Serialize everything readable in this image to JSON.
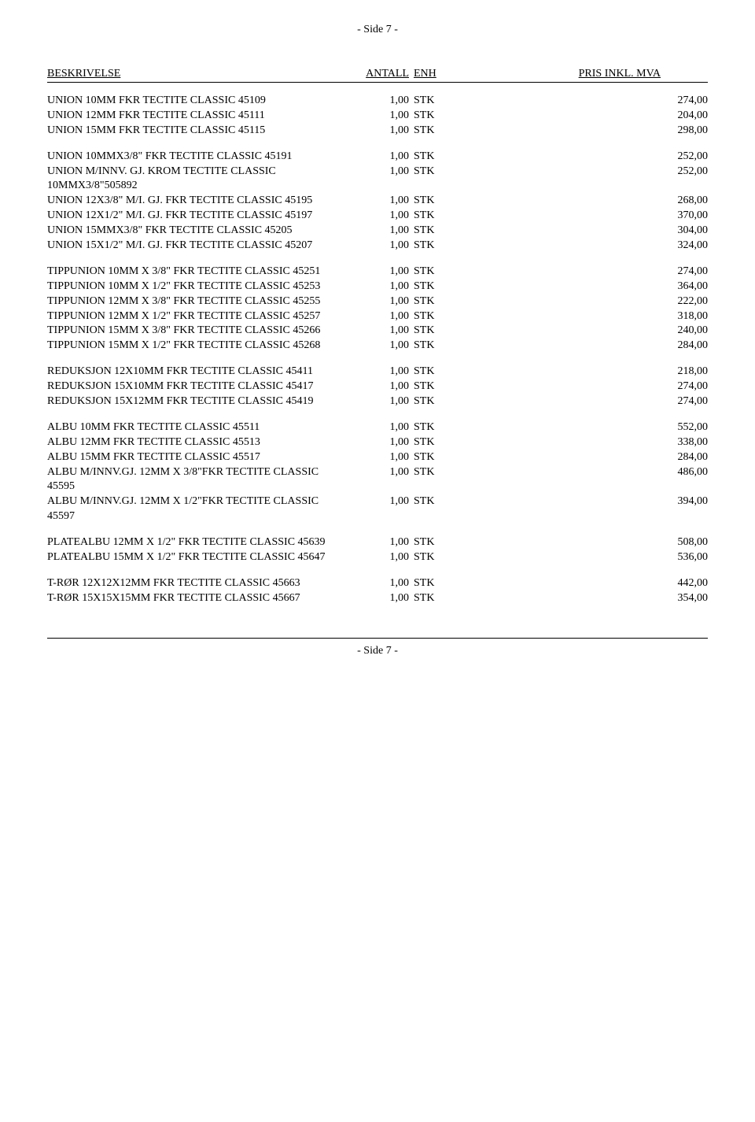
{
  "pageHeader": "- Side 7 -",
  "pageFooter": "- Side 7 -",
  "columns": {
    "desc": "BESKRIVELSE",
    "qty": "ANTALL",
    "unit": "ENH",
    "price": "PRIS INKL. MVA"
  },
  "groups": [
    [
      {
        "desc": "UNION 10MM FKR TECTITE CLASSIC 45109",
        "qty": "1,00",
        "unit": "STK",
        "price": "274,00"
      },
      {
        "desc": "UNION 12MM FKR TECTITE CLASSIC 45111",
        "qty": "1,00",
        "unit": "STK",
        "price": "204,00"
      },
      {
        "desc": "UNION 15MM FKR TECTITE CLASSIC 45115",
        "qty": "1,00",
        "unit": "STK",
        "price": "298,00"
      }
    ],
    [
      {
        "desc": "UNION 10MMX3/8\" FKR TECTITE CLASSIC 45191",
        "qty": "1,00",
        "unit": "STK",
        "price": "252,00"
      },
      {
        "desc": "UNION M/INNV. GJ. KROM TECTITE CLASSIC 10MMX3/8\"505892",
        "qty": "1,00",
        "unit": "STK",
        "price": "252,00"
      },
      {
        "desc": "UNION 12X3/8\" M/I. GJ. FKR TECTITE CLASSIC 45195",
        "qty": "1,00",
        "unit": "STK",
        "price": "268,00"
      },
      {
        "desc": "UNION 12X1/2\" M/I. GJ. FKR TECTITE CLASSIC 45197",
        "qty": "1,00",
        "unit": "STK",
        "price": "370,00"
      },
      {
        "desc": "UNION 15MMX3/8\" FKR TECTITE CLASSIC 45205",
        "qty": "1,00",
        "unit": "STK",
        "price": "304,00"
      },
      {
        "desc": "UNION 15X1/2\" M/I. GJ. FKR TECTITE CLASSIC 45207",
        "qty": "1,00",
        "unit": "STK",
        "price": "324,00"
      }
    ],
    [
      {
        "desc": "TIPPUNION 10MM X 3/8\" FKR TECTITE CLASSIC 45251",
        "qty": "1,00",
        "unit": "STK",
        "price": "274,00"
      },
      {
        "desc": "TIPPUNION 10MM X 1/2\" FKR TECTITE CLASSIC 45253",
        "qty": "1,00",
        "unit": "STK",
        "price": "364,00"
      },
      {
        "desc": "TIPPUNION 12MM X 3/8\" FKR TECTITE CLASSIC 45255",
        "qty": "1,00",
        "unit": "STK",
        "price": "222,00"
      },
      {
        "desc": "TIPPUNION 12MM X 1/2\" FKR TECTITE CLASSIC 45257",
        "qty": "1,00",
        "unit": "STK",
        "price": "318,00"
      },
      {
        "desc": "TIPPUNION 15MM X 3/8\" FKR TECTITE CLASSIC 45266",
        "qty": "1,00",
        "unit": "STK",
        "price": "240,00"
      },
      {
        "desc": "TIPPUNION 15MM X 1/2\" FKR TECTITE CLASSIC 45268",
        "qty": "1,00",
        "unit": "STK",
        "price": "284,00"
      }
    ],
    [
      {
        "desc": "REDUKSJON 12X10MM FKR TECTITE CLASSIC 45411",
        "qty": "1,00",
        "unit": "STK",
        "price": "218,00"
      },
      {
        "desc": "REDUKSJON 15X10MM FKR TECTITE CLASSIC 45417",
        "qty": "1,00",
        "unit": "STK",
        "price": "274,00"
      },
      {
        "desc": "REDUKSJON 15X12MM FKR TECTITE CLASSIC 45419",
        "qty": "1,00",
        "unit": "STK",
        "price": "274,00"
      }
    ],
    [
      {
        "desc": "ALBU 10MM FKR TECTITE CLASSIC 45511",
        "qty": "1,00",
        "unit": "STK",
        "price": "552,00"
      },
      {
        "desc": "ALBU 12MM FKR TECTITE CLASSIC 45513",
        "qty": "1,00",
        "unit": "STK",
        "price": "338,00"
      },
      {
        "desc": "ALBU 15MM FKR TECTITE CLASSIC 45517",
        "qty": "1,00",
        "unit": "STK",
        "price": "284,00"
      },
      {
        "desc": "ALBU M/INNV.GJ. 12MM X 3/8\"FKR TECTITE CLASSIC 45595",
        "qty": "1,00",
        "unit": "STK",
        "price": "486,00"
      },
      {
        "desc": "ALBU M/INNV.GJ. 12MM X 1/2\"FKR TECTITE CLASSIC 45597",
        "qty": "1,00",
        "unit": "STK",
        "price": "394,00"
      }
    ],
    [
      {
        "desc": "PLATEALBU 12MM X 1/2\" FKR TECTITE CLASSIC 45639",
        "qty": "1,00",
        "unit": "STK",
        "price": "508,00"
      },
      {
        "desc": "PLATEALBU 15MM X 1/2\" FKR TECTITE CLASSIC 45647",
        "qty": "1,00",
        "unit": "STK",
        "price": "536,00"
      }
    ],
    [
      {
        "desc": "T-RØR 12X12X12MM FKR TECTITE CLASSIC 45663",
        "qty": "1,00",
        "unit": "STK",
        "price": "442,00"
      },
      {
        "desc": "T-RØR 15X15X15MM FKR TECTITE CLASSIC 45667",
        "qty": "1,00",
        "unit": "STK",
        "price": "354,00"
      }
    ]
  ]
}
